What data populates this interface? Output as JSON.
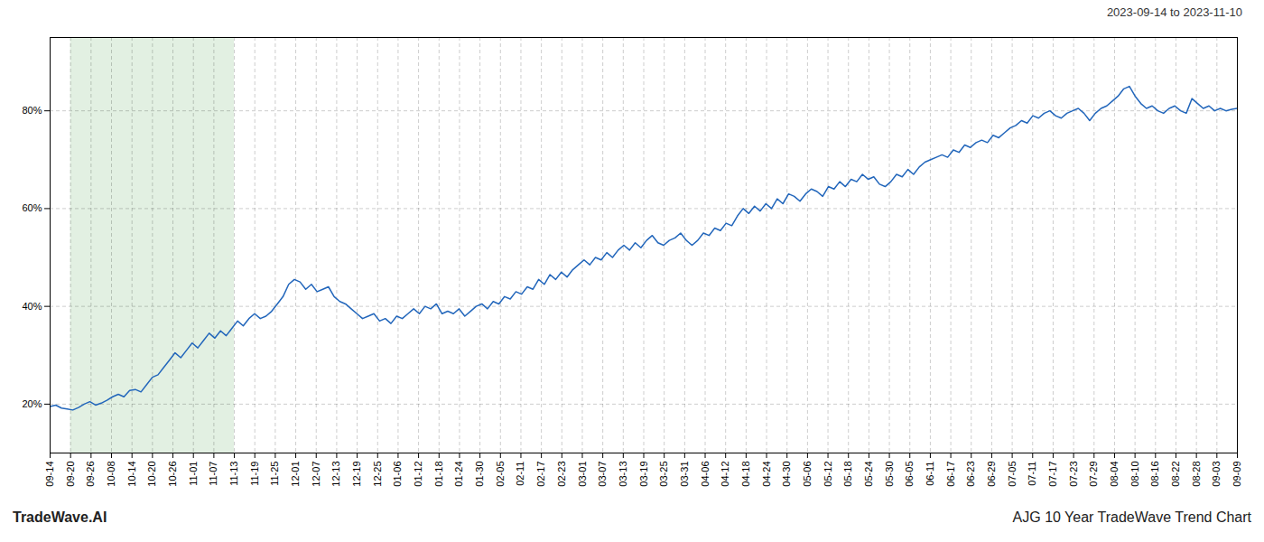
{
  "chart_data": {
    "type": "line",
    "title": "AJG 10 Year TradeWave Trend Chart",
    "subtitle": "2023-09-14 to 2023-11-10",
    "annotations": [
      "TradeWave.AI"
    ],
    "color": "#2266bb",
    "grid": true,
    "ylim": [
      10,
      95
    ],
    "yticks": [
      {
        "value": 20,
        "label": "20%"
      },
      {
        "value": 40,
        "label": "40%"
      },
      {
        "value": 60,
        "label": "60%"
      },
      {
        "value": 80,
        "label": "80%"
      }
    ],
    "xlim": [
      0,
      209
    ],
    "xticks": [
      {
        "value": 0,
        "label": "09-14"
      },
      {
        "value": 3.603448,
        "label": "09-20"
      },
      {
        "value": 7.206897,
        "label": "09-26"
      },
      {
        "value": 10.810345,
        "label": "10-08"
      },
      {
        "value": 14.413793,
        "label": "10-14"
      },
      {
        "value": 18.017241,
        "label": "10-20"
      },
      {
        "value": 21.62069,
        "label": "10-26"
      },
      {
        "value": 25.224138,
        "label": "11-01"
      },
      {
        "value": 28.827586,
        "label": "11-07"
      },
      {
        "value": 32.431034,
        "label": "11-13"
      },
      {
        "value": 36.034483,
        "label": "11-19"
      },
      {
        "value": 39.637931,
        "label": "11-25"
      },
      {
        "value": 43.241379,
        "label": "12-01"
      },
      {
        "value": 46.844828,
        "label": "12-07"
      },
      {
        "value": 50.448276,
        "label": "12-13"
      },
      {
        "value": 54.051724,
        "label": "12-19"
      },
      {
        "value": 57.655172,
        "label": "12-25"
      },
      {
        "value": 61.258621,
        "label": "01-06"
      },
      {
        "value": 64.862069,
        "label": "01-12"
      },
      {
        "value": 68.465517,
        "label": "01-18"
      },
      {
        "value": 72.068966,
        "label": "01-24"
      },
      {
        "value": 75.672414,
        "label": "01-30"
      },
      {
        "value": 79.275862,
        "label": "02-05"
      },
      {
        "value": 82.87931,
        "label": "02-11"
      },
      {
        "value": 86.482759,
        "label": "02-17"
      },
      {
        "value": 90.086207,
        "label": "02-23"
      },
      {
        "value": 93.689655,
        "label": "03-01"
      },
      {
        "value": 97.293103,
        "label": "03-07"
      },
      {
        "value": 100.896552,
        "label": "03-13"
      },
      {
        "value": 104.5,
        "label": "03-19"
      },
      {
        "value": 108.103448,
        "label": "03-25"
      },
      {
        "value": 111.706897,
        "label": "03-31"
      },
      {
        "value": 115.310345,
        "label": "04-06"
      },
      {
        "value": 118.913793,
        "label": "04-12"
      },
      {
        "value": 122.517241,
        "label": "04-18"
      },
      {
        "value": 126.12069,
        "label": "04-24"
      },
      {
        "value": 129.724138,
        "label": "04-30"
      },
      {
        "value": 133.327586,
        "label": "05-06"
      },
      {
        "value": 136.931034,
        "label": "05-12"
      },
      {
        "value": 140.534483,
        "label": "05-18"
      },
      {
        "value": 144.137931,
        "label": "05-24"
      },
      {
        "value": 147.741379,
        "label": "05-30"
      },
      {
        "value": 151.344828,
        "label": "06-05"
      },
      {
        "value": 154.948276,
        "label": "06-11"
      },
      {
        "value": 158.551724,
        "label": "06-17"
      },
      {
        "value": 162.155172,
        "label": "06-23"
      },
      {
        "value": 165.758621,
        "label": "06-29"
      },
      {
        "value": 169.362069,
        "label": "07-05"
      },
      {
        "value": 172.965517,
        "label": "07-11"
      },
      {
        "value": 176.568966,
        "label": "07-17"
      },
      {
        "value": 180.172414,
        "label": "07-23"
      },
      {
        "value": 183.775862,
        "label": "07-29"
      },
      {
        "value": 187.37931,
        "label": "08-04"
      },
      {
        "value": 190.982759,
        "label": "08-10"
      },
      {
        "value": 194.586207,
        "label": "08-16"
      },
      {
        "value": 198.189655,
        "label": "08-22"
      },
      {
        "value": 201.793103,
        "label": "08-28"
      },
      {
        "value": 205.396552,
        "label": "09-03"
      },
      {
        "value": 209,
        "label": "09-09"
      }
    ],
    "span": {
      "from": 3.603448,
      "to": 32.431034,
      "color": "#d6ead6"
    },
    "values": [
      19.5,
      19.8,
      19.2,
      19.0,
      18.8,
      19.3,
      20.0,
      20.5,
      19.8,
      20.2,
      20.8,
      21.5,
      22.0,
      21.5,
      22.8,
      23.0,
      22.5,
      24.0,
      25.5,
      26.0,
      27.5,
      29.0,
      30.5,
      29.5,
      31.0,
      32.5,
      31.5,
      33.0,
      34.5,
      33.5,
      35.0,
      34.0,
      35.5,
      37.0,
      36.0,
      37.5,
      38.5,
      37.5,
      38.0,
      39.0,
      40.5,
      42.0,
      44.5,
      45.5,
      45.0,
      43.5,
      44.5,
      43.0,
      43.5,
      44.0,
      42.0,
      41.0,
      40.5,
      39.5,
      38.5,
      37.5,
      38.0,
      38.5,
      37.0,
      37.5,
      36.5,
      38.0,
      37.5,
      38.5,
      39.5,
      38.5,
      40.0,
      39.5,
      40.5,
      38.5,
      39.0,
      38.5,
      39.5,
      38.0,
      39.0,
      40.0,
      40.5,
      39.5,
      41.0,
      40.5,
      42.0,
      41.5,
      43.0,
      42.5,
      44.0,
      43.5,
      45.5,
      44.5,
      46.5,
      45.5,
      47.0,
      46.0,
      47.5,
      48.5,
      49.5,
      48.5,
      50.0,
      49.5,
      51.0,
      50.0,
      51.5,
      52.5,
      51.5,
      53.0,
      52.0,
      53.5,
      54.5,
      53.0,
      52.5,
      53.5,
      54.0,
      55.0,
      53.5,
      52.5,
      53.5,
      55.0,
      54.5,
      56.0,
      55.5,
      57.0,
      56.5,
      58.5,
      60.0,
      59.0,
      60.5,
      59.5,
      61.0,
      60.0,
      62.0,
      61.0,
      63.0,
      62.5,
      61.5,
      63.0,
      64.0,
      63.5,
      62.5,
      64.5,
      64.0,
      65.5,
      64.5,
      66.0,
      65.5,
      67.0,
      66.0,
      66.5,
      65.0,
      64.5,
      65.5,
      67.0,
      66.5,
      68.0,
      67.0,
      68.5,
      69.5,
      70.0,
      70.5,
      71.0,
      70.5,
      72.0,
      71.5,
      73.0,
      72.5,
      73.5,
      74.0,
      73.5,
      75.0,
      74.5,
      75.5,
      76.5,
      77.0,
      78.0,
      77.5,
      79.0,
      78.5,
      79.5,
      80.0,
      79.0,
      78.5,
      79.5,
      80.0,
      80.5,
      79.5,
      78.0,
      79.5,
      80.5,
      81.0,
      82.0,
      83.0,
      84.5,
      85.0,
      83.0,
      81.5,
      80.5,
      81.0,
      80.0,
      79.5,
      80.5,
      81.0,
      80.0,
      79.5,
      82.5,
      81.5,
      80.5,
      81.0,
      80.0,
      80.5,
      80.0,
      80.3,
      80.5
    ]
  }
}
